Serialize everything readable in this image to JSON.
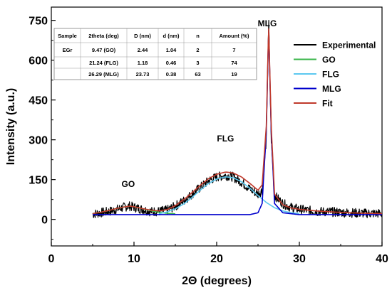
{
  "chart_data": {
    "type": "line",
    "xlabel": "2Θ (degrees)",
    "ylabel": "Intensity (a.u.)",
    "xlim": [
      0,
      40
    ],
    "ylim": [
      -100,
      800
    ],
    "xticks": [
      0,
      10,
      20,
      30,
      40
    ],
    "yticks": [
      0,
      150,
      300,
      450,
      600,
      750
    ],
    "grid": false,
    "legend_position": "top-right",
    "series": [
      {
        "name": "Experimental",
        "color": "#000000",
        "x": [
          5,
          6,
          7,
          8,
          9,
          9.47,
          10,
          11,
          12,
          13,
          14,
          15,
          16,
          17,
          18,
          19,
          20,
          21,
          21.24,
          22,
          23,
          24,
          25,
          25.5,
          26,
          26.29,
          26.6,
          27,
          28,
          29,
          30,
          32,
          34,
          36,
          38,
          40
        ],
        "y": [
          20,
          25,
          30,
          38,
          48,
          50,
          46,
          38,
          30,
          30,
          35,
          50,
          70,
          95,
          120,
          145,
          160,
          165,
          165,
          160,
          140,
          115,
          95,
          110,
          300,
          750,
          300,
          90,
          60,
          45,
          38,
          30,
          28,
          25,
          23,
          22
        ]
      },
      {
        "name": "GO",
        "color": "#39b54a",
        "x": [
          5,
          6,
          7,
          8,
          9,
          9.47,
          10,
          11,
          12,
          13,
          14,
          15
        ],
        "y": [
          22,
          27,
          34,
          42,
          48,
          50,
          48,
          41,
          33,
          27,
          23,
          21
        ]
      },
      {
        "name": "FLG",
        "color": "#5bc8f0",
        "x": [
          13,
          14,
          15,
          16,
          17,
          18,
          19,
          20,
          21,
          21.24,
          22,
          23,
          24,
          25,
          26,
          27,
          28,
          29,
          30
        ],
        "y": [
          21,
          28,
          40,
          58,
          82,
          110,
          135,
          152,
          160,
          160,
          157,
          142,
          118,
          90,
          64,
          44,
          32,
          25,
          22
        ]
      },
      {
        "name": "MLG",
        "color": "#0000cc",
        "x": [
          5,
          10,
          15,
          20,
          24,
          25,
          25.5,
          26,
          26.29,
          26.6,
          27,
          28,
          30,
          35,
          40
        ],
        "y": [
          18,
          18,
          18,
          18,
          18,
          25,
          60,
          330,
          720,
          330,
          60,
          25,
          18,
          18,
          18
        ]
      },
      {
        "name": "Fit",
        "color": "#c0392b",
        "x": [
          5,
          6,
          7,
          8,
          9,
          9.47,
          10,
          11,
          12,
          13,
          14,
          15,
          16,
          17,
          18,
          19,
          20,
          21,
          21.24,
          22,
          23,
          24,
          25,
          25.5,
          26,
          26.29,
          26.6,
          27,
          28,
          29,
          30,
          32,
          34,
          36,
          38,
          40
        ],
        "y": [
          22,
          27,
          34,
          42,
          48,
          50,
          48,
          41,
          35,
          32,
          37,
          52,
          74,
          100,
          128,
          153,
          170,
          178,
          178,
          175,
          160,
          136,
          110,
          130,
          350,
          730,
          350,
          95,
          55,
          43,
          38,
          32,
          28,
          25,
          23,
          22
        ]
      }
    ],
    "annotations": [
      {
        "text": "GO",
        "x": 9.47,
        "y": 50
      },
      {
        "text": "FLG",
        "x": 21.24,
        "y": 165
      },
      {
        "text": "MLG",
        "x": 26.29,
        "y": 750
      }
    ],
    "table": {
      "headers": [
        "Sample",
        "2theta (deg)",
        "D (nm)",
        "d (nm)",
        "n",
        "Amount (%)"
      ],
      "rows": [
        [
          "EGr",
          "9.47 (GO)",
          "2.44",
          "1.04",
          "2",
          "7"
        ],
        [
          "",
          "21.24 (FLG)",
          "1.18",
          "0.46",
          "3",
          "74"
        ],
        [
          "",
          "26.29 (MLG)",
          "23.73",
          "0.38",
          "63",
          "19"
        ]
      ]
    }
  }
}
